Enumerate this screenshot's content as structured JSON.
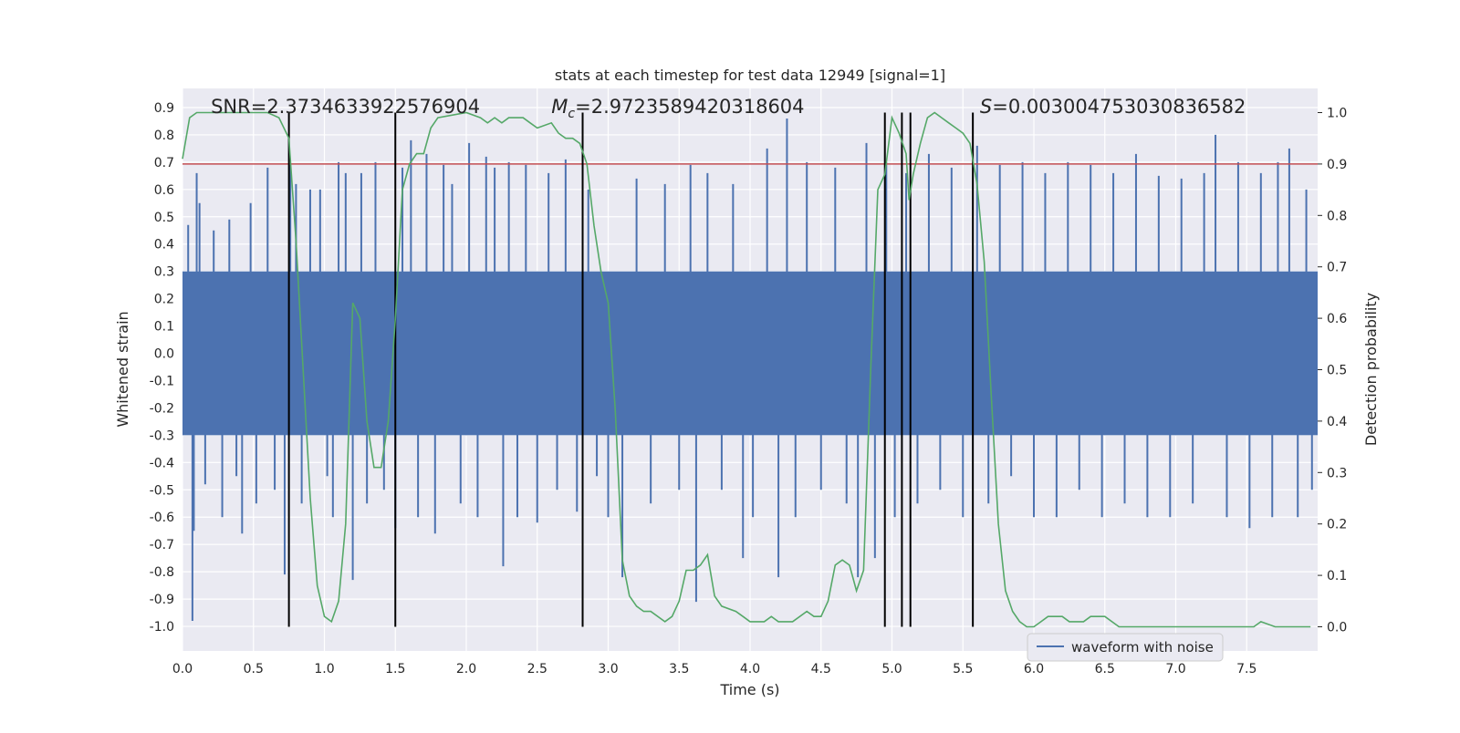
{
  "chart_data": {
    "type": "line",
    "title": "stats at each timestep for test data 12949 [signal=1]",
    "xlabel": "Time (s)",
    "ylabel": "Whitened strain",
    "ylabel_right": "Detection probability",
    "xlim": [
      0.0,
      8.0
    ],
    "ylim": [
      -1.09,
      0.97
    ],
    "ylim_right": [
      -0.047,
      1.047
    ],
    "x_ticks": [
      "0.0",
      "0.5",
      "1.0",
      "1.5",
      "2.0",
      "2.5",
      "3.0",
      "3.5",
      "4.0",
      "4.5",
      "5.0",
      "5.5",
      "6.0",
      "6.5",
      "7.0",
      "7.5"
    ],
    "y_ticks": [
      "0.9",
      "0.8",
      "0.7",
      "0.6",
      "0.5",
      "0.4",
      "0.3",
      "0.2",
      "0.1",
      "0.0",
      "-0.1",
      "-0.2",
      "-0.3",
      "-0.4",
      "-0.5",
      "-0.6",
      "-0.7",
      "-0.8",
      "-0.9",
      "-1.0"
    ],
    "y_ticks_right": [
      "1.0",
      "0.9",
      "0.8",
      "0.7",
      "0.6",
      "0.5",
      "0.4",
      "0.3",
      "0.2",
      "0.1",
      "0.0"
    ],
    "grid": true,
    "legend_position": "lower-right",
    "annotations": [
      {
        "text": "SNR=2.3734633922576904",
        "x": 0.2
      },
      {
        "text_prefix": "M",
        "text_sub": "c",
        "text_rest": "=2.9723589420318604",
        "x": 2.6
      },
      {
        "text_prefix": "S",
        "text_rest": "=0.003004753030836582",
        "x": 5.62
      }
    ],
    "threshold": {
      "value": 0.9,
      "axis": "right",
      "color": "#c44e52"
    },
    "vertical_lines": {
      "x": [
        0.75,
        1.5,
        2.82,
        4.95,
        5.07,
        5.13,
        5.57
      ],
      "color": "#000000"
    },
    "series": [
      {
        "name": "waveform with noise",
        "axis": "left",
        "color": "#4c72b0",
        "representation": "dense noise envelope",
        "dense_band": [
          -0.3,
          0.3
        ],
        "spikes": [
          {
            "x": 0.04,
            "v": 0.47
          },
          {
            "x": 0.07,
            "v": -0.98
          },
          {
            "x": 0.08,
            "v": -0.65
          },
          {
            "x": 0.1,
            "v": 0.66
          },
          {
            "x": 0.12,
            "v": 0.55
          },
          {
            "x": 0.16,
            "v": -0.48
          },
          {
            "x": 0.22,
            "v": 0.45
          },
          {
            "x": 0.28,
            "v": -0.6
          },
          {
            "x": 0.33,
            "v": 0.49
          },
          {
            "x": 0.38,
            "v": -0.45
          },
          {
            "x": 0.42,
            "v": -0.66
          },
          {
            "x": 0.48,
            "v": 0.55
          },
          {
            "x": 0.52,
            "v": -0.55
          },
          {
            "x": 0.6,
            "v": 0.68
          },
          {
            "x": 0.65,
            "v": -0.5
          },
          {
            "x": 0.72,
            "v": -0.81
          },
          {
            "x": 0.76,
            "v": 0.69
          },
          {
            "x": 0.8,
            "v": 0.62
          },
          {
            "x": 0.84,
            "v": -0.55
          },
          {
            "x": 0.9,
            "v": 0.6
          },
          {
            "x": 0.97,
            "v": 0.6
          },
          {
            "x": 1.02,
            "v": -0.45
          },
          {
            "x": 1.06,
            "v": -0.6
          },
          {
            "x": 1.1,
            "v": 0.7
          },
          {
            "x": 1.15,
            "v": 0.66
          },
          {
            "x": 1.2,
            "v": -0.83
          },
          {
            "x": 1.26,
            "v": 0.66
          },
          {
            "x": 1.3,
            "v": -0.55
          },
          {
            "x": 1.36,
            "v": 0.7
          },
          {
            "x": 1.42,
            "v": -0.5
          },
          {
            "x": 1.5,
            "v": -0.64
          },
          {
            "x": 1.55,
            "v": 0.68
          },
          {
            "x": 1.61,
            "v": 0.78
          },
          {
            "x": 1.66,
            "v": -0.6
          },
          {
            "x": 1.72,
            "v": 0.73
          },
          {
            "x": 1.78,
            "v": -0.66
          },
          {
            "x": 1.84,
            "v": 0.69
          },
          {
            "x": 1.9,
            "v": 0.62
          },
          {
            "x": 1.96,
            "v": -0.55
          },
          {
            "x": 2.02,
            "v": 0.77
          },
          {
            "x": 2.08,
            "v": -0.6
          },
          {
            "x": 2.14,
            "v": 0.72
          },
          {
            "x": 2.2,
            "v": 0.68
          },
          {
            "x": 2.26,
            "v": -0.78
          },
          {
            "x": 2.3,
            "v": 0.7
          },
          {
            "x": 2.36,
            "v": -0.6
          },
          {
            "x": 2.42,
            "v": 0.69
          },
          {
            "x": 2.5,
            "v": -0.62
          },
          {
            "x": 2.58,
            "v": 0.66
          },
          {
            "x": 2.64,
            "v": -0.5
          },
          {
            "x": 2.7,
            "v": 0.71
          },
          {
            "x": 2.78,
            "v": -0.58
          },
          {
            "x": 2.86,
            "v": 0.6
          },
          {
            "x": 2.92,
            "v": -0.45
          },
          {
            "x": 3.0,
            "v": -0.6
          },
          {
            "x": 3.1,
            "v": -0.82
          },
          {
            "x": 3.2,
            "v": 0.64
          },
          {
            "x": 3.3,
            "v": -0.55
          },
          {
            "x": 3.4,
            "v": 0.62
          },
          {
            "x": 3.5,
            "v": -0.5
          },
          {
            "x": 3.58,
            "v": 0.69
          },
          {
            "x": 3.62,
            "v": -0.91
          },
          {
            "x": 3.7,
            "v": 0.66
          },
          {
            "x": 3.8,
            "v": -0.5
          },
          {
            "x": 3.88,
            "v": 0.62
          },
          {
            "x": 3.95,
            "v": -0.75
          },
          {
            "x": 4.02,
            "v": -0.6
          },
          {
            "x": 4.12,
            "v": 0.75
          },
          {
            "x": 4.2,
            "v": -0.82
          },
          {
            "x": 4.26,
            "v": 0.86
          },
          {
            "x": 4.32,
            "v": -0.6
          },
          {
            "x": 4.4,
            "v": 0.7
          },
          {
            "x": 4.5,
            "v": -0.5
          },
          {
            "x": 4.6,
            "v": 0.68
          },
          {
            "x": 4.68,
            "v": -0.55
          },
          {
            "x": 4.76,
            "v": -0.82
          },
          {
            "x": 4.82,
            "v": 0.77
          },
          {
            "x": 4.88,
            "v": -0.75
          },
          {
            "x": 4.96,
            "v": 0.7
          },
          {
            "x": 5.02,
            "v": -0.6
          },
          {
            "x": 5.1,
            "v": 0.66
          },
          {
            "x": 5.18,
            "v": -0.55
          },
          {
            "x": 5.26,
            "v": 0.73
          },
          {
            "x": 5.34,
            "v": -0.5
          },
          {
            "x": 5.42,
            "v": 0.68
          },
          {
            "x": 5.5,
            "v": -0.6
          },
          {
            "x": 5.6,
            "v": 0.76
          },
          {
            "x": 5.68,
            "v": -0.55
          },
          {
            "x": 5.76,
            "v": 0.69
          },
          {
            "x": 5.84,
            "v": -0.45
          },
          {
            "x": 5.92,
            "v": 0.7
          },
          {
            "x": 6.0,
            "v": -0.6
          },
          {
            "x": 6.08,
            "v": 0.66
          },
          {
            "x": 6.16,
            "v": -0.6
          },
          {
            "x": 6.24,
            "v": 0.7
          },
          {
            "x": 6.32,
            "v": -0.5
          },
          {
            "x": 6.4,
            "v": 0.69
          },
          {
            "x": 6.48,
            "v": -0.6
          },
          {
            "x": 6.56,
            "v": 0.66
          },
          {
            "x": 6.64,
            "v": -0.55
          },
          {
            "x": 6.72,
            "v": 0.73
          },
          {
            "x": 6.8,
            "v": -0.6
          },
          {
            "x": 6.88,
            "v": 0.65
          },
          {
            "x": 6.96,
            "v": -0.6
          },
          {
            "x": 7.04,
            "v": 0.64
          },
          {
            "x": 7.12,
            "v": -0.55
          },
          {
            "x": 7.2,
            "v": 0.66
          },
          {
            "x": 7.28,
            "v": 0.8
          },
          {
            "x": 7.36,
            "v": -0.6
          },
          {
            "x": 7.44,
            "v": 0.7
          },
          {
            "x": 7.52,
            "v": -0.64
          },
          {
            "x": 7.6,
            "v": 0.66
          },
          {
            "x": 7.68,
            "v": -0.6
          },
          {
            "x": 7.72,
            "v": 0.7
          },
          {
            "x": 7.8,
            "v": 0.75
          },
          {
            "x": 7.86,
            "v": -0.6
          },
          {
            "x": 7.92,
            "v": 0.6
          },
          {
            "x": 7.96,
            "v": -0.5
          }
        ]
      },
      {
        "name": "",
        "axis": "right",
        "color": "#55a868",
        "x": [
          0.0,
          0.05,
          0.1,
          0.2,
          0.3,
          0.4,
          0.5,
          0.6,
          0.68,
          0.75,
          0.8,
          0.85,
          0.9,
          0.95,
          1.0,
          1.05,
          1.1,
          1.15,
          1.2,
          1.25,
          1.3,
          1.35,
          1.4,
          1.45,
          1.5,
          1.55,
          1.6,
          1.65,
          1.7,
          1.75,
          1.8,
          2.0,
          2.1,
          2.15,
          2.2,
          2.25,
          2.3,
          2.35,
          2.4,
          2.45,
          2.5,
          2.6,
          2.65,
          2.7,
          2.75,
          2.8,
          2.85,
          2.9,
          2.95,
          3.0,
          3.05,
          3.1,
          3.15,
          3.2,
          3.25,
          3.3,
          3.4,
          3.45,
          3.5,
          3.55,
          3.6,
          3.65,
          3.7,
          3.75,
          3.8,
          3.9,
          3.95,
          4.0,
          4.05,
          4.1,
          4.15,
          4.2,
          4.25,
          4.3,
          4.4,
          4.45,
          4.5,
          4.55,
          4.6,
          4.65,
          4.7,
          4.72,
          4.75,
          4.8,
          4.85,
          4.9,
          4.95,
          5.0,
          5.05,
          5.1,
          5.12,
          5.15,
          5.2,
          5.25,
          5.3,
          5.35,
          5.4,
          5.45,
          5.5,
          5.55,
          5.6,
          5.65,
          5.7,
          5.75,
          5.8,
          5.85,
          5.9,
          5.95,
          6.0,
          6.05,
          6.1,
          6.15,
          6.2,
          6.25,
          6.3,
          6.35,
          6.4,
          6.45,
          6.5,
          6.6,
          6.7,
          6.8,
          6.9,
          7.0,
          7.2,
          7.4,
          7.5,
          7.55,
          7.6,
          7.7,
          7.8,
          7.95
        ],
        "values": [
          0.91,
          0.99,
          1.0,
          1.0,
          1.0,
          1.0,
          1.0,
          1.0,
          0.99,
          0.95,
          0.75,
          0.5,
          0.25,
          0.08,
          0.02,
          0.01,
          0.05,
          0.2,
          0.63,
          0.6,
          0.4,
          0.31,
          0.31,
          0.4,
          0.6,
          0.85,
          0.9,
          0.92,
          0.92,
          0.97,
          0.99,
          1.0,
          0.99,
          0.98,
          0.99,
          0.98,
          0.99,
          0.99,
          0.99,
          0.98,
          0.97,
          0.98,
          0.96,
          0.95,
          0.95,
          0.94,
          0.9,
          0.78,
          0.69,
          0.63,
          0.42,
          0.13,
          0.06,
          0.04,
          0.03,
          0.03,
          0.01,
          0.02,
          0.05,
          0.11,
          0.11,
          0.12,
          0.14,
          0.06,
          0.04,
          0.03,
          0.02,
          0.01,
          0.01,
          0.01,
          0.02,
          0.01,
          0.01,
          0.01,
          0.03,
          0.02,
          0.02,
          0.05,
          0.12,
          0.13,
          0.12,
          0.1,
          0.07,
          0.11,
          0.5,
          0.85,
          0.88,
          0.99,
          0.96,
          0.92,
          0.83,
          0.88,
          0.94,
          0.99,
          1.0,
          0.99,
          0.98,
          0.97,
          0.96,
          0.94,
          0.86,
          0.71,
          0.45,
          0.2,
          0.07,
          0.03,
          0.01,
          0.0,
          0.0,
          0.01,
          0.02,
          0.02,
          0.02,
          0.01,
          0.01,
          0.01,
          0.02,
          0.02,
          0.02,
          0.0,
          0.0,
          0.0,
          0.0,
          0.0,
          0.0,
          0.0,
          0.0,
          0.0,
          0.01,
          0.0,
          0.0,
          0.0
        ]
      }
    ]
  }
}
